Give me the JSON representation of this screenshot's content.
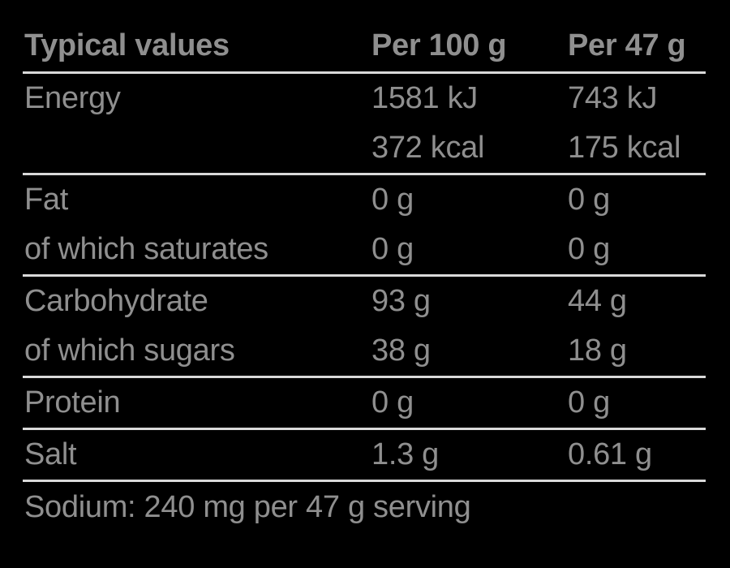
{
  "colors": {
    "background": "#000000",
    "text": "#8f8f8f",
    "divider": "#d9d9d9"
  },
  "table": {
    "header": {
      "typical_values": "Typical values",
      "per_100g": "Per 100 g",
      "per_47g": "Per 47 g"
    },
    "rows": [
      {
        "label": "Energy",
        "per_100g": "1581 kJ",
        "per_47g": "743 kJ",
        "rule_after": false
      },
      {
        "label": "",
        "per_100g": "372 kcal",
        "per_47g": "175 kcal",
        "rule_after": true
      },
      {
        "label": "Fat",
        "per_100g": "0 g",
        "per_47g": "0 g",
        "rule_after": false
      },
      {
        "label": "of which saturates",
        "per_100g": "0 g",
        "per_47g": "0 g",
        "rule_after": true
      },
      {
        "label": "Carbohydrate",
        "per_100g": "93 g",
        "per_47g": "44 g",
        "rule_after": false
      },
      {
        "label": "of which sugars",
        "per_100g": "38 g",
        "per_47g": "18 g",
        "rule_after": true
      },
      {
        "label": "Protein",
        "per_100g": "0 g",
        "per_47g": "0 g",
        "rule_after": true
      },
      {
        "label": "Salt",
        "per_100g": "1.3 g",
        "per_47g": "0.61 g",
        "rule_after": true
      }
    ],
    "footnote": "Sodium: 240 mg per 47 g serving"
  }
}
